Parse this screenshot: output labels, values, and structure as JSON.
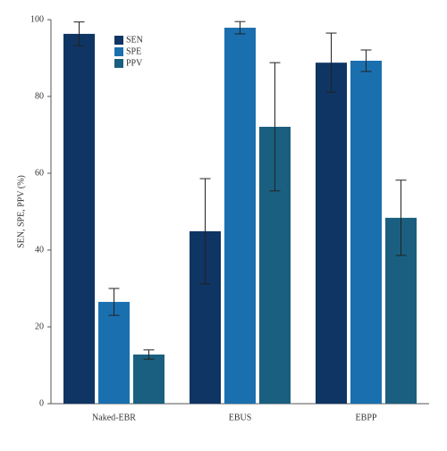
{
  "chart_data": {
    "type": "bar",
    "y_label": "SEN, SPE, PPV (%)",
    "categories": [
      "Naked-EBR",
      "EBUS",
      "EBPP"
    ],
    "series": [
      {
        "name": "SEN",
        "color": "#0e3563",
        "values": [
          96.3,
          44.9,
          88.8
        ],
        "errors": [
          3.1,
          13.7,
          7.7
        ]
      },
      {
        "name": "SPE",
        "color": "#1a6faf",
        "values": [
          26.5,
          97.9,
          89.3
        ],
        "errors": [
          3.5,
          1.6,
          2.8
        ]
      },
      {
        "name": "PPV",
        "color": "#1a5f7f",
        "values": [
          12.8,
          72.1,
          48.4
        ],
        "errors": [
          1.2,
          16.7,
          9.8
        ]
      }
    ],
    "ylim": [
      0,
      100
    ],
    "yticks": [
      0,
      20,
      40,
      60,
      80,
      100
    ],
    "legend": "top-left"
  }
}
